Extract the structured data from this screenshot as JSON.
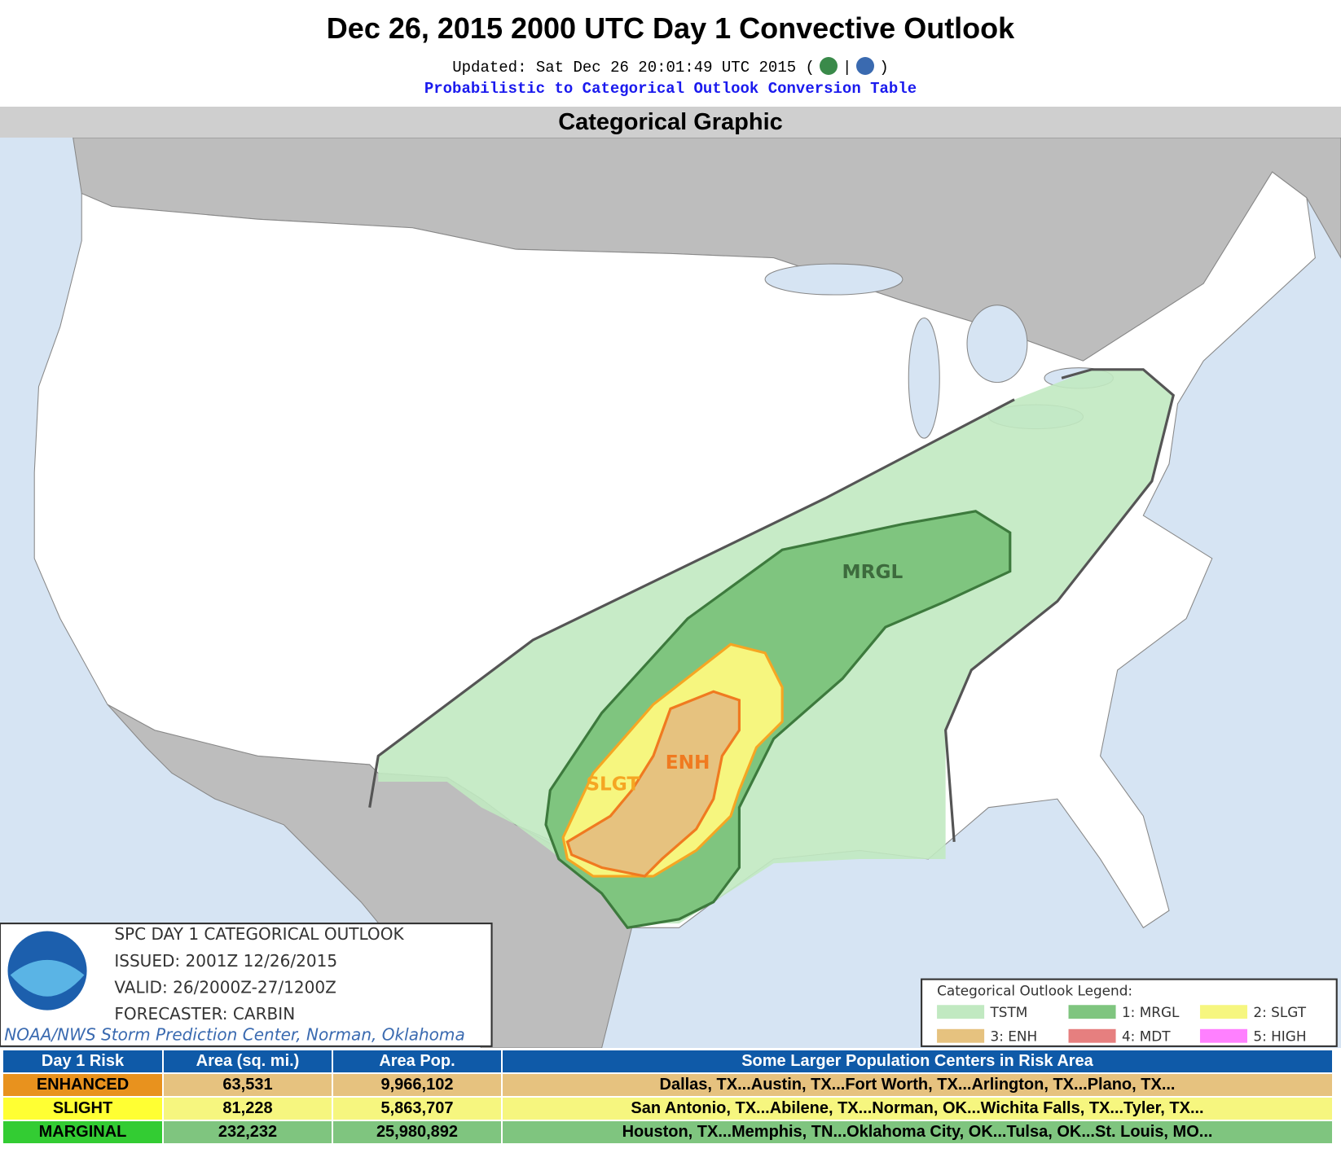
{
  "header": {
    "title": "Dec 26, 2015 2000 UTC Day 1 Convective Outlook",
    "updated": "Updated: Sat Dec 26 20:01:49 UTC 2015",
    "updated_separators": [
      "(",
      "|",
      ")"
    ],
    "conversion_link": "Probabilistic to Categorical Outlook Conversion Table",
    "section_heading": "Categorical Graphic"
  },
  "map": {
    "risk_labels": [
      "MRGL",
      "SLGT",
      "ENH"
    ]
  },
  "info_box": {
    "lines": [
      "SPC DAY 1 CATEGORICAL OUTLOOK",
      "ISSUED: 2001Z 12/26/2015",
      "VALID: 26/2000Z-27/1200Z",
      "FORECASTER: CARBIN"
    ],
    "credit": "NOAA/NWS Storm Prediction Center, Norman, Oklahoma"
  },
  "legend": {
    "title": "Categorical Outlook Legend:",
    "items": [
      {
        "label": "TSTM",
        "color": "#c1e9c1"
      },
      {
        "label": "1: MRGL",
        "color": "#7fc57f"
      },
      {
        "label": "2: SLGT",
        "color": "#f6f67f"
      },
      {
        "label": "3: ENH",
        "color": "#e6c27f"
      },
      {
        "label": "4: MDT",
        "color": "#e67f7f"
      },
      {
        "label": "5: HIGH",
        "color": "#ff80ff"
      }
    ]
  },
  "table": {
    "headers": [
      "Day 1 Risk",
      "Area (sq. mi.)",
      "Area Pop.",
      "Some Larger Population Centers in Risk Area"
    ],
    "rows": [
      [
        "ENHANCED",
        "63,531",
        "9,966,102",
        "Dallas, TX...Austin, TX...Fort Worth, TX...Arlington, TX...Plano, TX..."
      ],
      [
        "SLIGHT",
        "81,228",
        "5,863,707",
        "San Antonio, TX...Abilene, TX...Norman, OK...Wichita Falls, TX...Tyler, TX..."
      ],
      [
        "MARGINAL",
        "232,232",
        "25,980,892",
        "Houston, TX...Memphis, TN...Oklahoma City, OK...Tulsa, OK...St. Louis, MO..."
      ]
    ],
    "row_colors": [
      [
        "#e8921e",
        "#e6c27f"
      ],
      [
        "#ffff33",
        "#f6f67f"
      ],
      [
        "#33cc33",
        "#7fc57f"
      ]
    ]
  }
}
